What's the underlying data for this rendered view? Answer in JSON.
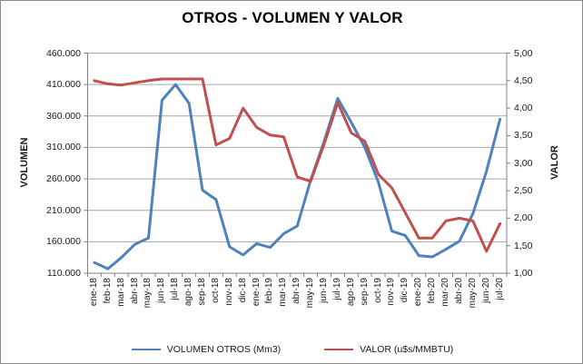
{
  "chart_data": {
    "type": "line",
    "title": "OTROS - VOLUMEN Y VALOR",
    "legend_position": "bottom",
    "grid": "horizontal",
    "categories": [
      "ene-18",
      "feb-18",
      "mar-18",
      "abr-18",
      "may-18",
      "jun-18",
      "jul-18",
      "ago-18",
      "sep-18",
      "oct-18",
      "nov-18",
      "dic-18",
      "ene-19",
      "feb-19",
      "mar-19",
      "abr-19",
      "may-19",
      "jun-19",
      "jul-19",
      "ago-19",
      "sep-19",
      "oct-19",
      "nov-19",
      "dic-19",
      "ene-20",
      "feb-20",
      "mar-20",
      "abr-20",
      "may-20",
      "jun-20",
      "jul-20"
    ],
    "series": [
      {
        "name": "VOLUMEN OTROS (Mm3)",
        "axis": "left",
        "color": "#4F81BD",
        "values": [
          127000,
          117000,
          135000,
          156000,
          166000,
          385000,
          410000,
          380000,
          242000,
          227000,
          152000,
          139000,
          157000,
          151000,
          173000,
          185000,
          258000,
          320000,
          388000,
          350000,
          310000,
          255000,
          177000,
          170000,
          138000,
          136000,
          148000,
          161000,
          205000,
          272000,
          355000
        ]
      },
      {
        "name": "VALOR (u$s/MMBTU)",
        "axis": "right",
        "color": "#C0504D",
        "values": [
          4.5,
          4.44,
          4.42,
          4.46,
          4.5,
          4.53,
          4.53,
          4.53,
          4.53,
          3.33,
          3.45,
          4.0,
          3.65,
          3.51,
          3.48,
          2.75,
          2.67,
          3.35,
          4.1,
          3.55,
          3.4,
          2.8,
          2.55,
          2.1,
          1.64,
          1.64,
          1.95,
          2.0,
          1.95,
          1.4,
          1.9
        ]
      }
    ],
    "left_axis": {
      "title": "VOLUMEN",
      "min": 110000,
      "max": 460000,
      "step": 50000,
      "tick_labels": [
        "460.000",
        "410.000",
        "360.000",
        "310.000",
        "260.000",
        "210.000",
        "160.000",
        "110.000"
      ]
    },
    "right_axis": {
      "title": "VALOR",
      "min": 1.0,
      "max": 5.0,
      "step": 0.5,
      "tick_labels": [
        "5,00",
        "4,50",
        "4,00",
        "3,50",
        "3,00",
        "2,50",
        "2,00",
        "1,50",
        "1,00"
      ]
    },
    "colors": {
      "gridline": "#a6a6a6",
      "axis": "#808080",
      "volumen_line": "#4F81BD",
      "valor_line": "#C0504D"
    }
  }
}
